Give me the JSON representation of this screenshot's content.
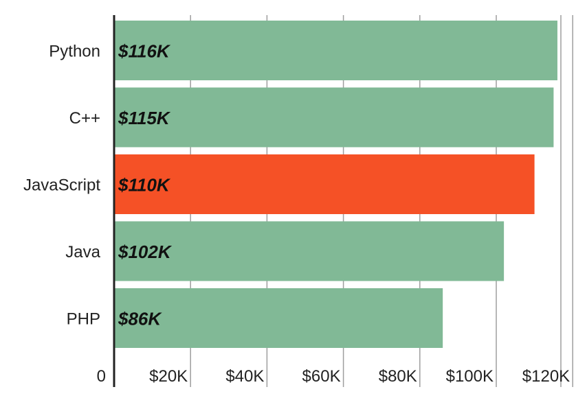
{
  "chart_data": {
    "type": "bar",
    "orientation": "horizontal",
    "title": "",
    "xlabel": "",
    "ylabel": "",
    "categories": [
      "Python",
      "C++",
      "JavaScript",
      "Java",
      "PHP"
    ],
    "values": [
      116,
      115,
      110,
      102,
      86
    ],
    "value_unit": "thousand USD",
    "data_labels": [
      "$116K",
      "$115K",
      "$110K",
      "$102K",
      "$86K"
    ],
    "highlight_category": "JavaScript",
    "xlim": [
      0,
      120
    ],
    "x_ticks": [
      0,
      20,
      40,
      60,
      80,
      100,
      120
    ],
    "x_tick_labels": [
      "0",
      "$20K",
      "$40K",
      "$60K",
      "$80K",
      "$100K",
      "$120K"
    ],
    "grid": "vertical",
    "legend": "none",
    "colors": {
      "bar": "#81b996",
      "highlight": "#f55126",
      "grid": "#9e9e9e",
      "axis": "#222222"
    }
  }
}
